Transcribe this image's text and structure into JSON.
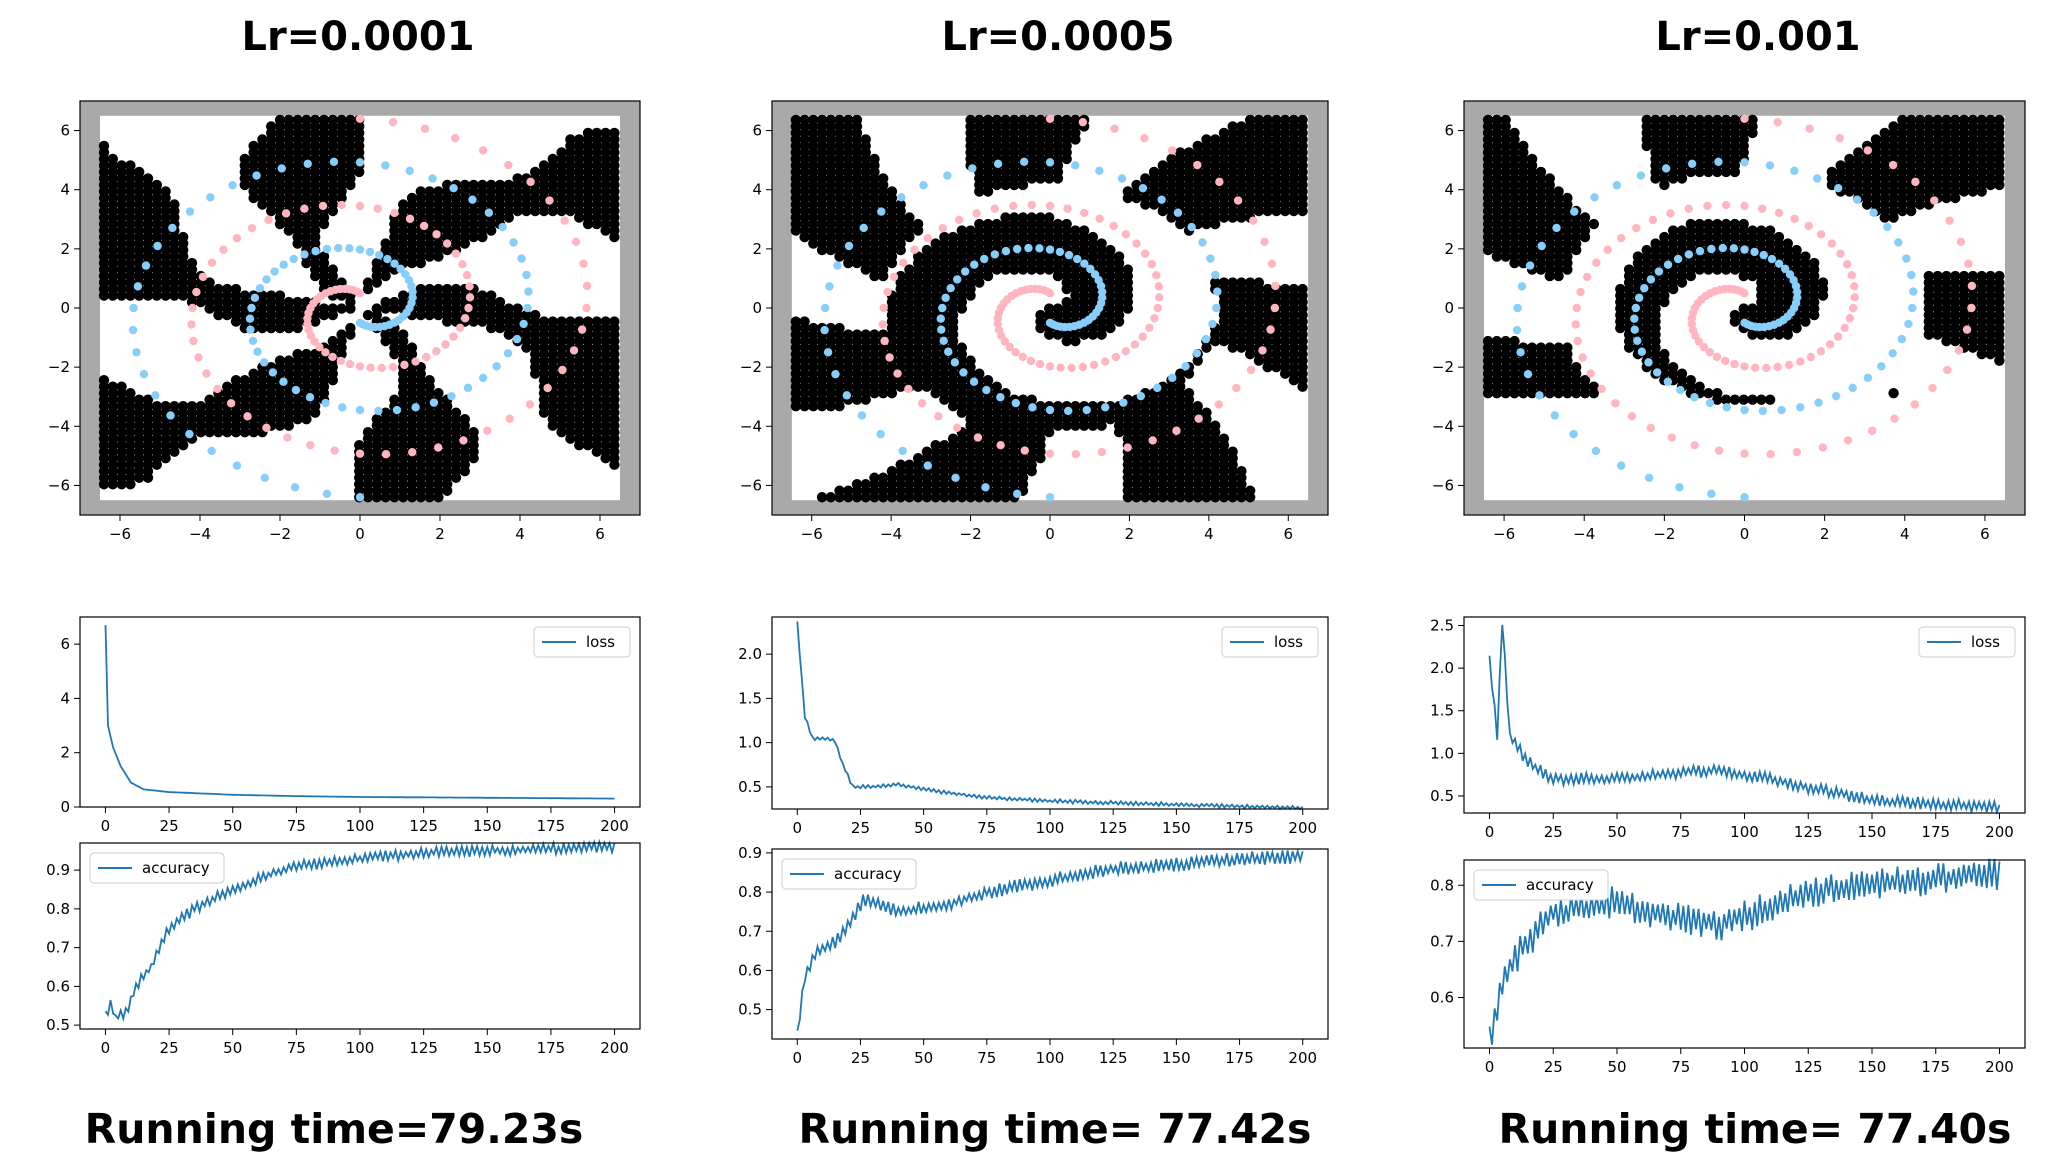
{
  "columns": [
    {
      "title": "Lr=0.0001",
      "running_time": "Running time=79.23s"
    },
    {
      "title": "Lr=0.0005",
      "running_time": "Running time= 77.42s"
    },
    {
      "title": "Lr=0.001",
      "running_time": "Running time= 77.40s"
    }
  ],
  "colors": {
    "line": "#1f77b4",
    "class_pink": "#ffb6c1",
    "class_blue": "#87cefa",
    "region_black": "#000000",
    "frame_gray": "#a9a9a9"
  },
  "chart_data": [
    {
      "type": "scatter",
      "panel": "Lr=0.0001",
      "description_region": "two-spiral decision boundary, fragmented black regions",
      "xlim": [
        -7,
        7
      ],
      "ylim": [
        -7,
        7
      ],
      "xticks": [
        -6,
        -4,
        -2,
        0,
        2,
        4,
        6
      ],
      "yticks": [
        -6,
        -4,
        -2,
        0,
        2,
        4,
        6
      ],
      "series": [
        {
          "class": "pink",
          "spiral_turns": 2.0,
          "radius_max": 6.4,
          "points": 97
        },
        {
          "class": "blue",
          "spiral_turns": 2.0,
          "radius_max": 6.4,
          "points": 97
        }
      ]
    },
    {
      "type": "scatter",
      "panel": "Lr=0.0005",
      "xlim": [
        -7,
        7
      ],
      "ylim": [
        -7,
        7
      ],
      "xticks": [
        -6,
        -4,
        -2,
        0,
        2,
        4,
        6
      ],
      "yticks": [
        -6,
        -4,
        -2,
        0,
        2,
        4,
        6
      ],
      "series": [
        {
          "class": "pink",
          "spiral_turns": 2.0,
          "radius_max": 6.4,
          "points": 97
        },
        {
          "class": "blue",
          "spiral_turns": 2.0,
          "radius_max": 6.4,
          "points": 97
        }
      ]
    },
    {
      "type": "scatter",
      "panel": "Lr=0.001",
      "xlim": [
        -7,
        7
      ],
      "ylim": [
        -7,
        7
      ],
      "xticks": [
        -6,
        -4,
        -2,
        0,
        2,
        4,
        6
      ],
      "yticks": [
        -6,
        -4,
        -2,
        0,
        2,
        4,
        6
      ],
      "series": [
        {
          "class": "pink",
          "spiral_turns": 2.0,
          "radius_max": 6.4,
          "points": 97
        },
        {
          "class": "blue",
          "spiral_turns": 2.0,
          "radius_max": 6.4,
          "points": 97
        }
      ]
    },
    {
      "type": "line",
      "panel": "Lr=0.0001",
      "legend": "loss",
      "legend_loc": "upper right",
      "xlim": [
        -10,
        210
      ],
      "ylim": [
        0,
        7
      ],
      "xticks": [
        0,
        25,
        50,
        75,
        100,
        125,
        150,
        175,
        200
      ],
      "yticks": [
        0,
        2,
        4,
        6
      ],
      "ytick_labels": [
        "0",
        "2",
        "4",
        "6"
      ],
      "keypoints": [
        [
          0,
          6.7
        ],
        [
          1,
          3.0
        ],
        [
          3,
          2.2
        ],
        [
          6,
          1.5
        ],
        [
          10,
          0.9
        ],
        [
          15,
          0.65
        ],
        [
          25,
          0.55
        ],
        [
          50,
          0.45
        ],
        [
          75,
          0.4
        ],
        [
          100,
          0.37
        ],
        [
          150,
          0.34
        ],
        [
          200,
          0.31
        ]
      ],
      "noise": 0
    },
    {
      "type": "line",
      "panel": "Lr=0.0001",
      "legend": "accuracy",
      "legend_loc": "upper left",
      "xlim": [
        -10,
        210
      ],
      "ylim": [
        0.49,
        0.97
      ],
      "xticks": [
        0,
        25,
        50,
        75,
        100,
        125,
        150,
        175,
        200
      ],
      "yticks": [
        0.5,
        0.6,
        0.7,
        0.8,
        0.9
      ],
      "ytick_labels": [
        "0.5",
        "0.6",
        "0.7",
        "0.8",
        "0.9"
      ],
      "keypoints": [
        [
          0,
          0.53
        ],
        [
          2,
          0.55
        ],
        [
          4,
          0.52
        ],
        [
          8,
          0.53
        ],
        [
          12,
          0.6
        ],
        [
          18,
          0.65
        ],
        [
          25,
          0.75
        ],
        [
          35,
          0.8
        ],
        [
          50,
          0.85
        ],
        [
          65,
          0.89
        ],
        [
          75,
          0.91
        ],
        [
          100,
          0.93
        ],
        [
          125,
          0.945
        ],
        [
          150,
          0.95
        ],
        [
          175,
          0.955
        ],
        [
          200,
          0.96
        ]
      ],
      "noise": 0.01
    },
    {
      "type": "line",
      "panel": "Lr=0.0005",
      "legend": "loss",
      "legend_loc": "upper right",
      "xlim": [
        -10,
        210
      ],
      "ylim": [
        0.25,
        2.42
      ],
      "xticks": [
        0,
        25,
        50,
        75,
        100,
        125,
        150,
        175,
        200
      ],
      "yticks": [
        0.5,
        1.0,
        1.5,
        2.0
      ],
      "ytick_labels": [
        "0.5",
        "1.0",
        "1.5",
        "2.0"
      ],
      "keypoints": [
        [
          0,
          2.35
        ],
        [
          3,
          1.3
        ],
        [
          6,
          1.05
        ],
        [
          10,
          1.05
        ],
        [
          15,
          1.02
        ],
        [
          18,
          0.75
        ],
        [
          22,
          0.5
        ],
        [
          30,
          0.5
        ],
        [
          40,
          0.53
        ],
        [
          50,
          0.47
        ],
        [
          75,
          0.38
        ],
        [
          100,
          0.34
        ],
        [
          125,
          0.32
        ],
        [
          150,
          0.3
        ],
        [
          175,
          0.28
        ],
        [
          200,
          0.26
        ]
      ],
      "noise": 0.015
    },
    {
      "type": "line",
      "panel": "Lr=0.0005",
      "legend": "accuracy",
      "legend_loc": "upper left",
      "xlim": [
        -10,
        210
      ],
      "ylim": [
        0.425,
        0.91
      ],
      "xticks": [
        0,
        25,
        50,
        75,
        100,
        125,
        150,
        175,
        200
      ],
      "yticks": [
        0.5,
        0.6,
        0.7,
        0.8,
        0.9
      ],
      "ytick_labels": [
        "0.5",
        "0.6",
        "0.7",
        "0.8",
        "0.9"
      ],
      "keypoints": [
        [
          0,
          0.44
        ],
        [
          3,
          0.58
        ],
        [
          8,
          0.65
        ],
        [
          15,
          0.67
        ],
        [
          22,
          0.73
        ],
        [
          26,
          0.78
        ],
        [
          40,
          0.75
        ],
        [
          60,
          0.77
        ],
        [
          75,
          0.8
        ],
        [
          100,
          0.83
        ],
        [
          125,
          0.86
        ],
        [
          150,
          0.87
        ],
        [
          175,
          0.885
        ],
        [
          200,
          0.89
        ]
      ],
      "noise": 0.012
    },
    {
      "type": "line",
      "panel": "Lr=0.001",
      "legend": "loss",
      "legend_loc": "upper right",
      "xlim": [
        -10,
        210
      ],
      "ylim": [
        0.3,
        2.6
      ],
      "xticks": [
        0,
        25,
        50,
        75,
        100,
        125,
        150,
        175,
        200
      ],
      "yticks": [
        0.5,
        1.0,
        1.5,
        2.0,
        2.5
      ],
      "ytick_labels": [
        "0.5",
        "1.0",
        "1.5",
        "2.0",
        "2.5"
      ],
      "keypoints": [
        [
          0,
          2.1
        ],
        [
          3,
          1.2
        ],
        [
          5,
          2.55
        ],
        [
          8,
          1.2
        ],
        [
          15,
          0.9
        ],
        [
          25,
          0.7
        ],
        [
          50,
          0.7
        ],
        [
          75,
          0.78
        ],
        [
          90,
          0.8
        ],
        [
          110,
          0.7
        ],
        [
          125,
          0.6
        ],
        [
          150,
          0.45
        ],
        [
          175,
          0.4
        ],
        [
          200,
          0.37
        ]
      ],
      "noise": 0.05
    },
    {
      "type": "line",
      "panel": "Lr=0.001",
      "legend": "accuracy",
      "legend_loc": "upper left",
      "xlim": [
        -10,
        210
      ],
      "ylim": [
        0.51,
        0.845
      ],
      "xticks": [
        0,
        25,
        50,
        75,
        100,
        125,
        150,
        175,
        200
      ],
      "yticks": [
        0.6,
        0.7,
        0.8
      ],
      "ytick_labels": [
        "0.6",
        "0.7",
        "0.8"
      ],
      "keypoints": [
        [
          0,
          0.52
        ],
        [
          5,
          0.63
        ],
        [
          10,
          0.67
        ],
        [
          15,
          0.7
        ],
        [
          25,
          0.75
        ],
        [
          50,
          0.77
        ],
        [
          75,
          0.74
        ],
        [
          90,
          0.73
        ],
        [
          110,
          0.76
        ],
        [
          125,
          0.79
        ],
        [
          150,
          0.8
        ],
        [
          175,
          0.81
        ],
        [
          200,
          0.82
        ]
      ],
      "noise": 0.02
    }
  ]
}
